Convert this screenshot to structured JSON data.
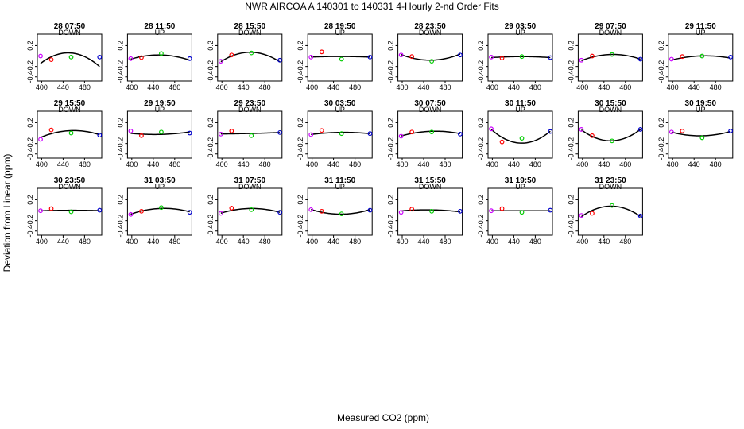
{
  "figure": {
    "title": "NWR   AIRCOA A   140301 to 140331   4-Hourly 2-nd Order Fits",
    "xlabel": "Measured CO2 (ppm)",
    "ylabel": "Deviation from Linear (ppm)"
  },
  "colors": {
    "fit_line": "#000000",
    "std1": "#cc00ff",
    "std2": "#ff0000",
    "std3": "#00cc00",
    "std4": "#0000cc"
  },
  "chart_data": {
    "type": "scatter",
    "layout": "small-multiples grid, 8 columns",
    "x_ticks": [
      400,
      440,
      480
    ],
    "y_ticks": [
      0.2,
      -0.2,
      -0.4
    ],
    "xlim": [
      392,
      512
    ],
    "ylim": [
      -0.48,
      0.42
    ],
    "standards_x": [
      398,
      418,
      455,
      508
    ],
    "panels": [
      {
        "title": "28 07:50",
        "mode": "DOWN",
        "fit": [
          -0.15,
          0.0,
          0.05,
          -0.2
        ],
        "points": [
          0.0,
          -0.07,
          -0.02,
          -0.02
        ]
      },
      {
        "title": "28 11:50",
        "mode": "UP",
        "fit": [
          -0.06,
          -0.01,
          0.02,
          -0.08
        ],
        "points": [
          -0.05,
          -0.03,
          0.05,
          -0.05
        ]
      },
      {
        "title": "28 15:50",
        "mode": "DOWN",
        "fit": [
          -0.12,
          0.02,
          0.06,
          -0.11
        ],
        "points": [
          -0.1,
          0.02,
          0.06,
          -0.08
        ]
      },
      {
        "title": "28 19:50",
        "mode": "UP",
        "fit": [
          -0.02,
          -0.01,
          -0.01,
          -0.02
        ],
        "points": [
          -0.02,
          0.08,
          -0.06,
          -0.02
        ]
      },
      {
        "title": "28 23:50",
        "mode": "DOWN",
        "fit": [
          0.02,
          -0.02,
          -0.09,
          0.04
        ],
        "points": [
          0.02,
          -0.01,
          -0.1,
          0.02
        ]
      },
      {
        "title": "29 03:50",
        "mode": "UP",
        "fit": [
          -0.03,
          -0.02,
          -0.01,
          -0.03
        ],
        "points": [
          -0.02,
          -0.04,
          -0.01,
          -0.03
        ]
      },
      {
        "title": "29 07:50",
        "mode": "DOWN",
        "fit": [
          -0.09,
          -0.02,
          0.03,
          -0.06
        ],
        "points": [
          -0.08,
          0.0,
          0.03,
          -0.06
        ]
      },
      {
        "title": "29 11:50",
        "mode": "UP",
        "fit": [
          -0.08,
          -0.03,
          0.0,
          -0.04
        ],
        "points": [
          -0.06,
          -0.01,
          0.0,
          -0.02
        ]
      },
      {
        "title": "29 15:50",
        "mode": "DOWN",
        "fit": [
          -0.09,
          0.0,
          0.04,
          -0.03
        ],
        "points": [
          -0.12,
          0.06,
          0.0,
          -0.04
        ]
      },
      {
        "title": "29 19:50",
        "mode": "UP",
        "fit": [
          0.0,
          -0.03,
          -0.02,
          0.02
        ],
        "points": [
          0.04,
          -0.05,
          0.02,
          0.0
        ]
      },
      {
        "title": "29 23:50",
        "mode": "DOWN",
        "fit": [
          -0.02,
          -0.01,
          -0.01,
          0.01
        ],
        "points": [
          -0.02,
          0.04,
          -0.05,
          0.01
        ]
      },
      {
        "title": "30 03:50",
        "mode": "UP",
        "fit": [
          -0.03,
          0.0,
          0.01,
          -0.01
        ],
        "points": [
          -0.03,
          0.05,
          -0.01,
          -0.01
        ]
      },
      {
        "title": "30 07:50",
        "mode": "DOWN",
        "fit": [
          -0.06,
          0.0,
          0.03,
          -0.01
        ],
        "points": [
          -0.06,
          0.02,
          0.02,
          -0.02
        ]
      },
      {
        "title": "30 11:50",
        "mode": "UP",
        "fit": [
          0.09,
          -0.12,
          -0.17,
          0.03
        ],
        "points": [
          0.08,
          -0.17,
          -0.1,
          0.03
        ]
      },
      {
        "title": "30 15:50",
        "mode": "DOWN",
        "fit": [
          0.06,
          -0.06,
          -0.15,
          0.07
        ],
        "points": [
          0.07,
          -0.05,
          -0.15,
          0.07
        ]
      },
      {
        "title": "30 19:50",
        "mode": "UP",
        "fit": [
          0.02,
          -0.03,
          -0.05,
          0.03
        ],
        "points": [
          0.02,
          0.04,
          -0.09,
          0.04
        ]
      },
      {
        "title": "30 23:50",
        "mode": "DOWN",
        "fit": [
          -0.01,
          -0.01,
          0.0,
          -0.01
        ],
        "points": [
          -0.01,
          0.03,
          -0.03,
          0.0
        ]
      },
      {
        "title": "31 03:50",
        "mode": "UP",
        "fit": [
          -0.08,
          -0.01,
          0.03,
          -0.03
        ],
        "points": [
          -0.08,
          -0.02,
          0.05,
          -0.04
        ]
      },
      {
        "title": "31 07:50",
        "mode": "DOWN",
        "fit": [
          -0.06,
          0.0,
          0.03,
          -0.04
        ],
        "points": [
          -0.06,
          0.04,
          0.01,
          -0.04
        ]
      },
      {
        "title": "31 11:50",
        "mode": "UP",
        "fit": [
          0.02,
          -0.05,
          -0.07,
          0.01
        ],
        "points": [
          0.01,
          -0.02,
          -0.07,
          0.0
        ]
      },
      {
        "title": "31 15:50",
        "mode": "DOWN",
        "fit": [
          -0.02,
          0.01,
          0.0,
          -0.03
        ],
        "points": [
          -0.04,
          0.02,
          -0.02,
          -0.02
        ]
      },
      {
        "title": "31 19:50",
        "mode": "UP",
        "fit": [
          -0.01,
          -0.01,
          -0.01,
          -0.01
        ],
        "points": [
          -0.01,
          0.03,
          -0.04,
          0.0
        ]
      },
      {
        "title": "31 23:50",
        "mode": "DOWN",
        "fit": [
          -0.12,
          -0.01,
          0.08,
          -0.12
        ],
        "points": [
          -0.1,
          -0.06,
          0.09,
          -0.11
        ]
      }
    ]
  }
}
